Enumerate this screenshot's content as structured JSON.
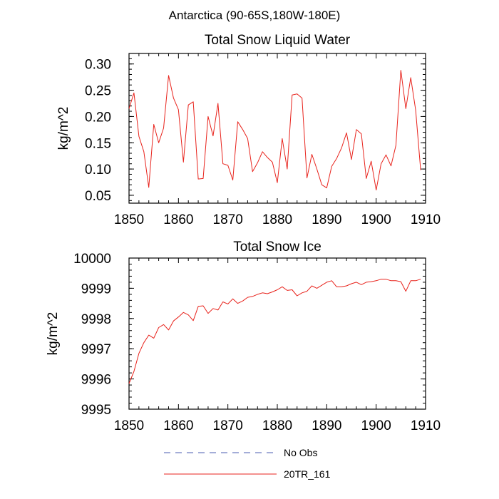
{
  "figure": {
    "super_title": "Antarctica (90-65S,180W-180E)"
  },
  "legend": [
    {
      "name": "No Obs",
      "color": "#4a5bb0",
      "dash": true
    },
    {
      "name": "20TR_161",
      "color": "#e8231c",
      "dash": false
    }
  ],
  "chart_data": [
    {
      "type": "line",
      "title": "Total Snow Liquid Water",
      "xlabel": "",
      "ylabel": "kg/m^2",
      "xlim": [
        1850,
        1910
      ],
      "ylim": [
        0.035,
        0.32
      ],
      "x_ticks": [
        1850,
        1860,
        1870,
        1880,
        1890,
        1900,
        1910
      ],
      "y_ticks": [
        0.05,
        0.1,
        0.15,
        0.2,
        0.25,
        0.3
      ],
      "y_tick_labels": [
        "0.05",
        "0.10",
        "0.15",
        "0.20",
        "0.25",
        "0.30"
      ],
      "series": [
        {
          "name": "20TR_161",
          "color": "#e8231c",
          "x": [
            1850,
            1851,
            1852,
            1853,
            1854,
            1855,
            1856,
            1857,
            1858,
            1859,
            1860,
            1861,
            1862,
            1863,
            1864,
            1865,
            1866,
            1867,
            1868,
            1869,
            1870,
            1871,
            1872,
            1873,
            1874,
            1875,
            1876,
            1877,
            1878,
            1879,
            1880,
            1881,
            1882,
            1883,
            1884,
            1885,
            1886,
            1887,
            1888,
            1889,
            1890,
            1891,
            1892,
            1893,
            1894,
            1895,
            1896,
            1897,
            1898,
            1899,
            1900,
            1901,
            1902,
            1903,
            1904,
            1905,
            1906,
            1907,
            1908,
            1909
          ],
          "y": [
            0.215,
            0.245,
            0.162,
            0.133,
            0.065,
            0.185,
            0.15,
            0.178,
            0.278,
            0.235,
            0.213,
            0.113,
            0.222,
            0.228,
            0.081,
            0.082,
            0.2,
            0.163,
            0.225,
            0.11,
            0.107,
            0.079,
            0.19,
            0.175,
            0.158,
            0.095,
            0.112,
            0.133,
            0.122,
            0.113,
            0.074,
            0.158,
            0.1,
            0.241,
            0.243,
            0.235,
            0.083,
            0.128,
            0.1,
            0.07,
            0.064,
            0.105,
            0.12,
            0.14,
            0.169,
            0.118,
            0.175,
            0.167,
            0.082,
            0.115,
            0.06,
            0.11,
            0.127,
            0.106,
            0.145,
            0.288,
            0.215,
            0.274,
            0.212,
            0.098
          ]
        }
      ]
    },
    {
      "type": "line",
      "title": "Total Snow Ice",
      "xlabel": "",
      "ylabel": "kg/m^2",
      "xlim": [
        1850,
        1910
      ],
      "ylim": [
        9995,
        10000
      ],
      "x_ticks": [
        1850,
        1860,
        1870,
        1880,
        1890,
        1900,
        1910
      ],
      "y_ticks": [
        9995,
        9996,
        9997,
        9998,
        9999,
        10000
      ],
      "y_tick_labels": [
        "9995",
        "9996",
        "9997",
        "9998",
        "9999",
        "10000"
      ],
      "series": [
        {
          "name": "20TR_161",
          "color": "#e8231c",
          "x": [
            1850,
            1851,
            1852,
            1853,
            1854,
            1855,
            1856,
            1857,
            1858,
            1859,
            1860,
            1861,
            1862,
            1863,
            1864,
            1865,
            1866,
            1867,
            1868,
            1869,
            1870,
            1871,
            1872,
            1873,
            1874,
            1875,
            1876,
            1877,
            1878,
            1879,
            1880,
            1881,
            1882,
            1883,
            1884,
            1885,
            1886,
            1887,
            1888,
            1889,
            1890,
            1891,
            1892,
            1893,
            1894,
            1895,
            1896,
            1897,
            1898,
            1899,
            1900,
            1901,
            1902,
            1903,
            1904,
            1905,
            1906,
            1907,
            1908,
            1909
          ],
          "y": [
            9995.85,
            9996.25,
            9996.85,
            9997.2,
            9997.45,
            9997.35,
            9997.7,
            9997.8,
            9997.62,
            9997.92,
            9998.05,
            9998.2,
            9998.12,
            9997.93,
            9998.4,
            9998.42,
            9998.17,
            9998.33,
            9998.28,
            9998.55,
            9998.48,
            9998.65,
            9998.5,
            9998.58,
            9998.7,
            9998.73,
            9998.8,
            9998.85,
            9998.82,
            9998.88,
            9998.95,
            9999.05,
            9998.93,
            9998.95,
            9998.75,
            9998.85,
            9998.9,
            9999.08,
            9999.0,
            9999.1,
            9999.2,
            9999.25,
            9999.05,
            9999.05,
            9999.08,
            9999.15,
            9999.2,
            9999.12,
            9999.2,
            9999.22,
            9999.25,
            9999.3,
            9999.3,
            9999.25,
            9999.25,
            9999.22,
            9998.9,
            9999.25,
            9999.25,
            9999.3
          ]
        }
      ]
    }
  ]
}
